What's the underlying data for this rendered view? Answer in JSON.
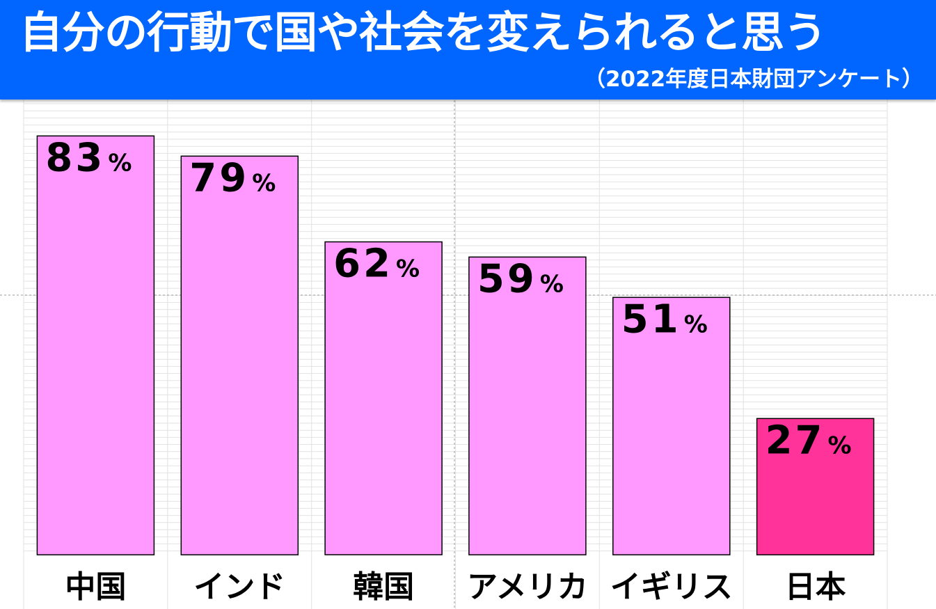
{
  "header": {
    "title": "自分の行動で国や社会を変えられると思う",
    "subtitle": "（2022年度日本財団アンケート）"
  },
  "colors": {
    "header_bg": "#0066ff",
    "bar": "#ff99ff",
    "bar_highlight": "#ff3399",
    "bar_stroke": "#000000"
  },
  "chart_data": {
    "type": "bar",
    "title": "自分の行動で国や社会を変えられると思う",
    "subtitle": "（2022年度日本財団アンケート）",
    "categories": [
      "中国",
      "インド",
      "韓国",
      "アメリカ",
      "イギリス",
      "日本"
    ],
    "values": [
      83,
      79,
      62,
      59,
      51,
      27
    ],
    "value_labels": [
      "83",
      "79",
      "62",
      "59",
      "51",
      "27"
    ],
    "unit": "%",
    "highlight_category": "日本",
    "xlabel": "",
    "ylabel": "",
    "ylim": [
      0,
      100
    ],
    "grid": true,
    "legend": "none"
  }
}
